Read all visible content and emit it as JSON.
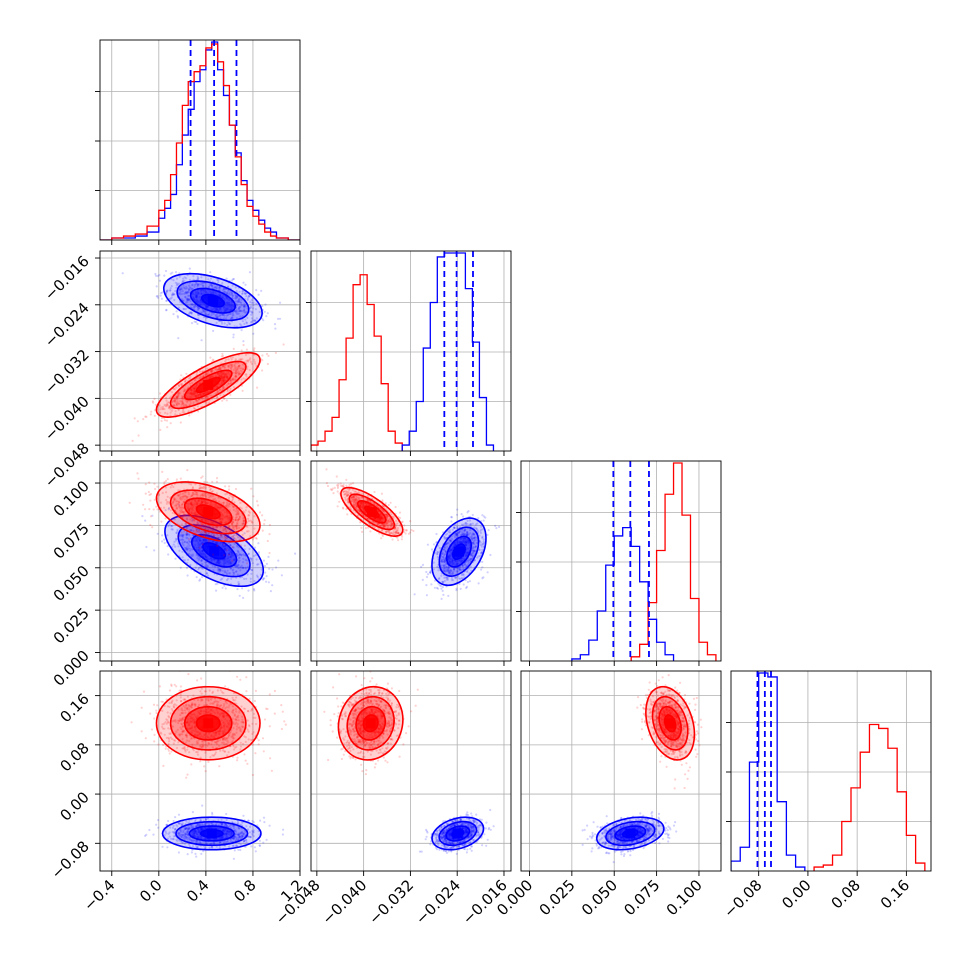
{
  "chart_data": {
    "type": "corner",
    "grid": true,
    "series": [
      {
        "name": "",
        "color": "#0000ff"
      },
      {
        "name": "",
        "color": "#ff0000"
      }
    ],
    "params": [
      {
        "range": [
          -0.5,
          1.2
        ],
        "ticks": [
          -0.4,
          0.0,
          0.4,
          0.8,
          1.2
        ],
        "tick_labels": [
          "−0.4",
          "0.0",
          "0.4",
          "0.8",
          "1.2"
        ]
      },
      {
        "range": [
          -0.049,
          -0.0148
        ],
        "ticks": [
          -0.048,
          -0.04,
          -0.032,
          -0.024,
          -0.016
        ],
        "tick_labels": [
          "−0.048",
          "−0.040",
          "−0.032",
          "−0.024",
          "−0.016"
        ]
      },
      {
        "range": [
          -0.005,
          0.113
        ],
        "ticks": [
          0.0,
          0.025,
          0.05,
          0.075,
          0.1
        ],
        "tick_labels": [
          "0.000",
          "0.025",
          "0.050",
          "0.075",
          "0.100"
        ]
      },
      {
        "range": [
          -0.125,
          0.2
        ],
        "ticks": [
          -0.08,
          0.0,
          0.08,
          0.16
        ],
        "tick_labels": [
          "−0.08",
          "0.00",
          "0.08",
          "0.16"
        ]
      }
    ],
    "quantile_lines": {
      "color": "#0000ff",
      "values": [
        [
          0.27,
          0.47,
          0.66
        ],
        [
          -0.0262,
          -0.0241,
          -0.0213
        ],
        [
          0.0495,
          0.0595,
          0.0705
        ],
        [
          -0.082,
          -0.07,
          -0.06
        ]
      ]
    },
    "histograms": [
      {
        "param": 0,
        "series": [
          {
            "color": "#0000ff",
            "edges": [
              -0.5,
              -0.4,
              -0.3,
              -0.2,
              -0.1,
              0.0,
              0.05,
              0.1,
              0.15,
              0.2,
              0.25,
              0.3,
              0.35,
              0.4,
              0.45,
              0.5,
              0.55,
              0.6,
              0.65,
              0.7,
              0.75,
              0.8,
              0.85,
              0.9,
              0.95,
              1.0,
              1.1,
              1.2
            ],
            "counts": [
              0,
              1,
              1,
              2,
              4,
              11,
              16,
              23,
              38,
              53,
              66,
              80,
              86,
              96,
              100,
              86,
              73,
              58,
              44,
              30,
              20,
              15,
              10,
              6,
              4,
              1,
              0
            ]
          },
          {
            "color": "#ff0000",
            "edges": [
              -0.5,
              -0.4,
              -0.3,
              -0.2,
              -0.1,
              0.0,
              0.05,
              0.1,
              0.15,
              0.2,
              0.25,
              0.3,
              0.35,
              0.4,
              0.45,
              0.5,
              0.55,
              0.6,
              0.65,
              0.7,
              0.75,
              0.8,
              0.85,
              0.9,
              0.95,
              1.0,
              1.1,
              1.2
            ],
            "counts": [
              0,
              1,
              2,
              3,
              7,
              15,
              20,
              33,
              49,
              68,
              80,
              85,
              88,
              97,
              99,
              90,
              78,
              58,
              42,
              28,
              17,
              12,
              8,
              4,
              2,
              1,
              0
            ]
          }
        ]
      },
      {
        "param": 1,
        "series": [
          {
            "color": "#ff0000",
            "edges": [
              -0.049,
              -0.0478,
              -0.0466,
              -0.0454,
              -0.0442,
              -0.043,
              -0.0418,
              -0.0406,
              -0.0394,
              -0.0382,
              -0.037,
              -0.0358,
              -0.0346,
              -0.0334
            ],
            "counts": [
              3,
              5,
              10,
              17,
              36,
              57,
              84,
              89,
              74,
              58,
              34,
              10,
              4
            ]
          },
          {
            "color": "#0000ff",
            "edges": [
              -0.0334,
              -0.0322,
              -0.031,
              -0.0298,
              -0.0286,
              -0.0274,
              -0.0262,
              -0.025,
              -0.0238,
              -0.0226,
              -0.0214,
              -0.0202,
              -0.019,
              -0.0178
            ],
            "counts": [
              3,
              10,
              25,
              52,
              75,
              98,
              100,
              100,
              100,
              82,
              55,
              27,
              3
            ]
          }
        ]
      },
      {
        "param": 2,
        "series": [
          {
            "color": "#0000ff",
            "edges": [
              0.025,
              0.03,
              0.035,
              0.04,
              0.045,
              0.05,
              0.055,
              0.06,
              0.065,
              0.07,
              0.075,
              0.08,
              0.085
            ],
            "counts": [
              1,
              3,
              10,
              24,
              46,
              60,
              64,
              55,
              38,
              20,
              9,
              3
            ]
          },
          {
            "color": "#ff0000",
            "edges": [
              0.06,
              0.065,
              0.07,
              0.075,
              0.08,
              0.085,
              0.09,
              0.095,
              0.1,
              0.105,
              0.11
            ],
            "counts": [
              2,
              8,
              28,
              53,
              80,
              95,
              70,
              30,
              9,
              3
            ]
          }
        ]
      },
      {
        "param": 3,
        "series": [
          {
            "color": "#0000ff",
            "edges": [
              -0.125,
              -0.11,
              -0.095,
              -0.08,
              -0.065,
              -0.05,
              -0.035,
              -0.02,
              -0.005
            ],
            "counts": [
              5,
              12,
              55,
              100,
              98,
              35,
              8,
              2
            ]
          },
          {
            "color": "#ff0000",
            "edges": [
              0.01,
              0.025,
              0.04,
              0.055,
              0.07,
              0.085,
              0.1,
              0.115,
              0.13,
              0.145,
              0.16,
              0.175,
              0.19
            ],
            "counts": [
              2,
              3,
              8,
              25,
              42,
              60,
              74,
              72,
              62,
              40,
              18,
              4
            ]
          }
        ]
      }
    ],
    "pairs": [
      {
        "row": 1,
        "col": 0,
        "series": [
          {
            "color": "#0000ff",
            "mean": [
              0.46,
              -0.0233
            ],
            "sd": [
              0.19,
              0.0021
            ],
            "rho": -0.45
          },
          {
            "color": "#ff0000",
            "mean": [
              0.42,
              -0.0377
            ],
            "sd": [
              0.2,
              0.0025
            ],
            "rho": 0.78
          }
        ]
      },
      {
        "row": 2,
        "col": 0,
        "series": [
          {
            "color": "#0000ff",
            "mean": [
              0.47,
              0.06
            ],
            "sd": [
              0.19,
              0.0095
            ],
            "rho": -0.55
          },
          {
            "color": "#ff0000",
            "mean": [
              0.42,
              0.083
            ],
            "sd": [
              0.2,
              0.008
            ],
            "rho": -0.45
          }
        ]
      },
      {
        "row": 2,
        "col": 1,
        "series": [
          {
            "color": "#0000ff",
            "mean": [
              -0.0237,
              0.0595
            ],
            "sd": [
              0.0021,
              0.009
            ],
            "rho": 0.4
          },
          {
            "color": "#ff0000",
            "mean": [
              -0.0386,
              0.083
            ],
            "sd": [
              0.0024,
              0.0065
            ],
            "rho": -0.75
          }
        ]
      },
      {
        "row": 3,
        "col": 0,
        "series": [
          {
            "color": "#0000ff",
            "mean": [
              0.45,
              -0.064
            ],
            "sd": [
              0.19,
              0.012
            ],
            "rho": 0.0
          },
          {
            "color": "#ff0000",
            "mean": [
              0.42,
              0.115
            ],
            "sd": [
              0.2,
              0.027
            ],
            "rho": 0.0
          }
        ]
      },
      {
        "row": 3,
        "col": 1,
        "series": [
          {
            "color": "#0000ff",
            "mean": [
              -0.0239,
              -0.064
            ],
            "sd": [
              0.002,
              0.012
            ],
            "rho": 0.3
          },
          {
            "color": "#ff0000",
            "mean": [
              -0.0388,
              0.115
            ],
            "sd": [
              0.0025,
              0.027
            ],
            "rho": 0.1
          }
        ]
      },
      {
        "row": 3,
        "col": 2,
        "series": [
          {
            "color": "#0000ff",
            "mean": [
              0.0595,
              -0.064
            ],
            "sd": [
              0.009,
              0.012
            ],
            "rho": 0.3
          },
          {
            "color": "#ff0000",
            "mean": [
              0.083,
              0.115
            ],
            "sd": [
              0.0065,
              0.027
            ],
            "rho": -0.3
          }
        ]
      }
    ]
  }
}
